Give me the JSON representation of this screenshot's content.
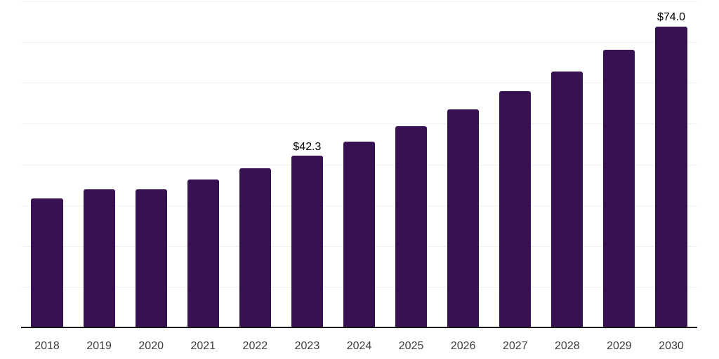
{
  "chart_data": {
    "type": "bar",
    "title": "",
    "xlabel": "",
    "ylabel": "",
    "categories": [
      "2018",
      "2019",
      "2020",
      "2021",
      "2022",
      "2023",
      "2024",
      "2025",
      "2026",
      "2027",
      "2028",
      "2029",
      "2030"
    ],
    "values": [
      31.8,
      34.0,
      34.1,
      36.5,
      39.2,
      42.3,
      45.8,
      49.5,
      53.7,
      58.2,
      63.0,
      68.3,
      74.0
    ],
    "annotations": [
      {
        "category": "2023",
        "text": "$42.3"
      },
      {
        "category": "2030",
        "text": "$74.0"
      }
    ],
    "ylim": [
      0,
      80
    ],
    "gridline_step": 10,
    "grid": true,
    "legend": false,
    "y_axis_labels_visible": false,
    "colors": {
      "bar": "#371152",
      "axis": "#141414",
      "gridline": "#f1f1f3",
      "tick_label": "#3d3d3d",
      "data_label": "#000000"
    }
  }
}
